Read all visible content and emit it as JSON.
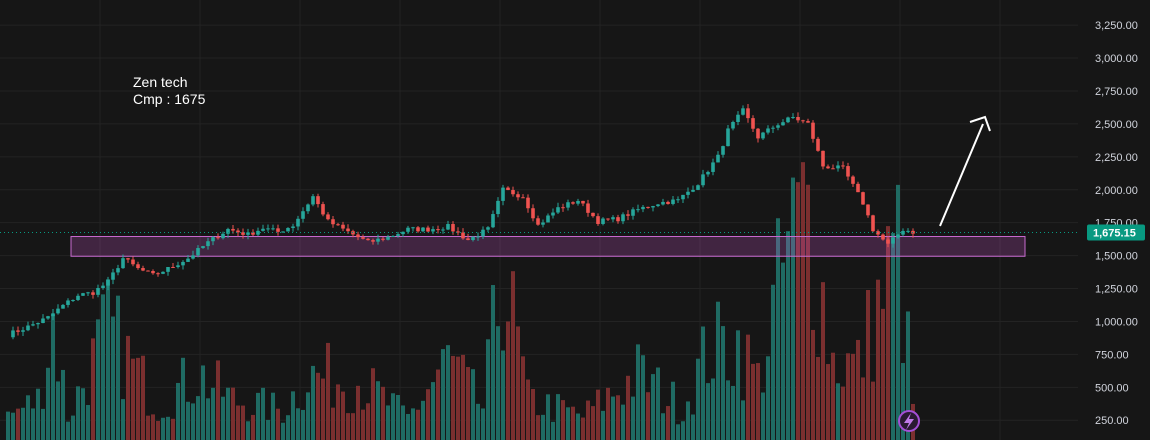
{
  "annotation": {
    "line1": "Zen tech",
    "line2": "Cmp : 1675"
  },
  "price_tag": {
    "value": "1,675.15",
    "color": "#089981"
  },
  "colors": {
    "up": "#26a69a",
    "down": "#ef5350",
    "vol_up": "#1f6b63",
    "vol_down": "#7a2f2f",
    "zone_fill": "#d95cd9",
    "zone_stroke": "#c86ad0",
    "grid": "#232323",
    "bg": "#161616"
  },
  "icons": {
    "arrow": "up-right-arrow-icon",
    "lightning": "lightning-icon"
  },
  "chart_data": {
    "type": "candlestick",
    "title": "",
    "ylim": [
      100,
      3380
    ],
    "yticks": [
      "3,250.00",
      "3,000.00",
      "2,750.00",
      "2,500.00",
      "2,250.00",
      "2,000.00",
      "1,750.00",
      "1,500.00",
      "1,250.00",
      "1,000.00",
      "750.00",
      "500.00",
      "250.00"
    ],
    "ytick_values": [
      3250,
      3000,
      2750,
      2500,
      2250,
      2000,
      1750,
      1500,
      1250,
      1000,
      750,
      500,
      250
    ],
    "last_price": 1675.15,
    "support_zone": [
      1495,
      1645
    ],
    "arrow_target": [
      2550
    ],
    "n_bars": 150,
    "anchors": [
      [
        0,
        900
      ],
      [
        4,
        960
      ],
      [
        8,
        1030
      ],
      [
        11,
        1120
      ],
      [
        14,
        1200
      ],
      [
        17,
        1220
      ],
      [
        20,
        1300
      ],
      [
        23,
        1480
      ],
      [
        26,
        1400
      ],
      [
        29,
        1350
      ],
      [
        32,
        1400
      ],
      [
        36,
        1480
      ],
      [
        40,
        1600
      ],
      [
        44,
        1700
      ],
      [
        48,
        1660
      ],
      [
        51,
        1710
      ],
      [
        54,
        1680
      ],
      [
        57,
        1730
      ],
      [
        61,
        1950
      ],
      [
        64,
        1760
      ],
      [
        68,
        1680
      ],
      [
        72,
        1600
      ],
      [
        76,
        1640
      ],
      [
        80,
        1700
      ],
      [
        84,
        1700
      ],
      [
        88,
        1720
      ],
      [
        92,
        1620
      ],
      [
        96,
        1700
      ],
      [
        99,
        2000
      ],
      [
        103,
        1950
      ],
      [
        106,
        1730
      ],
      [
        110,
        1860
      ],
      [
        114,
        1920
      ],
      [
        118,
        1760
      ],
      [
        122,
        1780
      ],
      [
        126,
        1850
      ],
      [
        130,
        1900
      ],
      [
        134,
        1920
      ],
      [
        138,
        2050
      ],
      [
        142,
        2250
      ],
      [
        144,
        2450
      ],
      [
        147,
        2600
      ],
      [
        150,
        2400
      ],
      [
        154,
        2500
      ],
      [
        157,
        2550
      ],
      [
        160,
        2500
      ],
      [
        163,
        2180
      ],
      [
        167,
        2160
      ],
      [
        171,
        1900
      ],
      [
        173,
        1700
      ],
      [
        176,
        1580
      ],
      [
        179,
        1700
      ],
      [
        181,
        1680
      ]
    ],
    "volume_ylim": [
      0,
      1200
    ],
    "volume_anchors": [
      [
        0,
        120
      ],
      [
        6,
        200
      ],
      [
        9,
        600
      ],
      [
        12,
        120
      ],
      [
        20,
        550
      ],
      [
        30,
        180
      ],
      [
        38,
        330
      ],
      [
        45,
        200
      ],
      [
        55,
        150
      ],
      [
        60,
        320
      ],
      [
        70,
        300
      ],
      [
        80,
        110
      ],
      [
        88,
        400
      ],
      [
        95,
        160
      ],
      [
        99,
        850
      ],
      [
        104,
        200
      ],
      [
        115,
        120
      ],
      [
        126,
        330
      ],
      [
        135,
        160
      ],
      [
        140,
        450
      ],
      [
        146,
        480
      ],
      [
        150,
        300
      ],
      [
        156,
        950
      ],
      [
        160,
        1150
      ],
      [
        165,
        400
      ],
      [
        170,
        370
      ],
      [
        178,
        950
      ],
      [
        181,
        180
      ]
    ]
  }
}
